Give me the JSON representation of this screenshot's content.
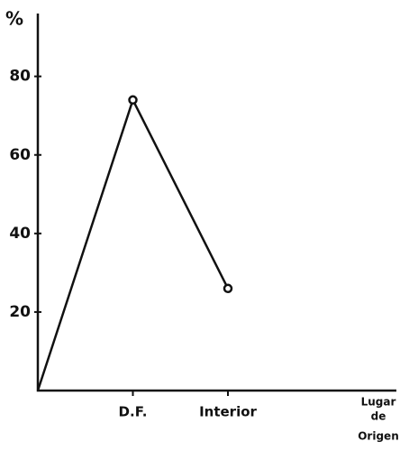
{
  "chart_data": {
    "type": "line",
    "y_label": "%",
    "x_label": [
      "Lugar",
      "de",
      "Origen"
    ],
    "categories": [
      null,
      "D.F.",
      "Interior"
    ],
    "values": [
      0,
      74,
      26
    ],
    "ylim": [
      0,
      96
    ],
    "yticks": [
      20,
      40,
      60,
      80
    ],
    "color": "#111111"
  }
}
